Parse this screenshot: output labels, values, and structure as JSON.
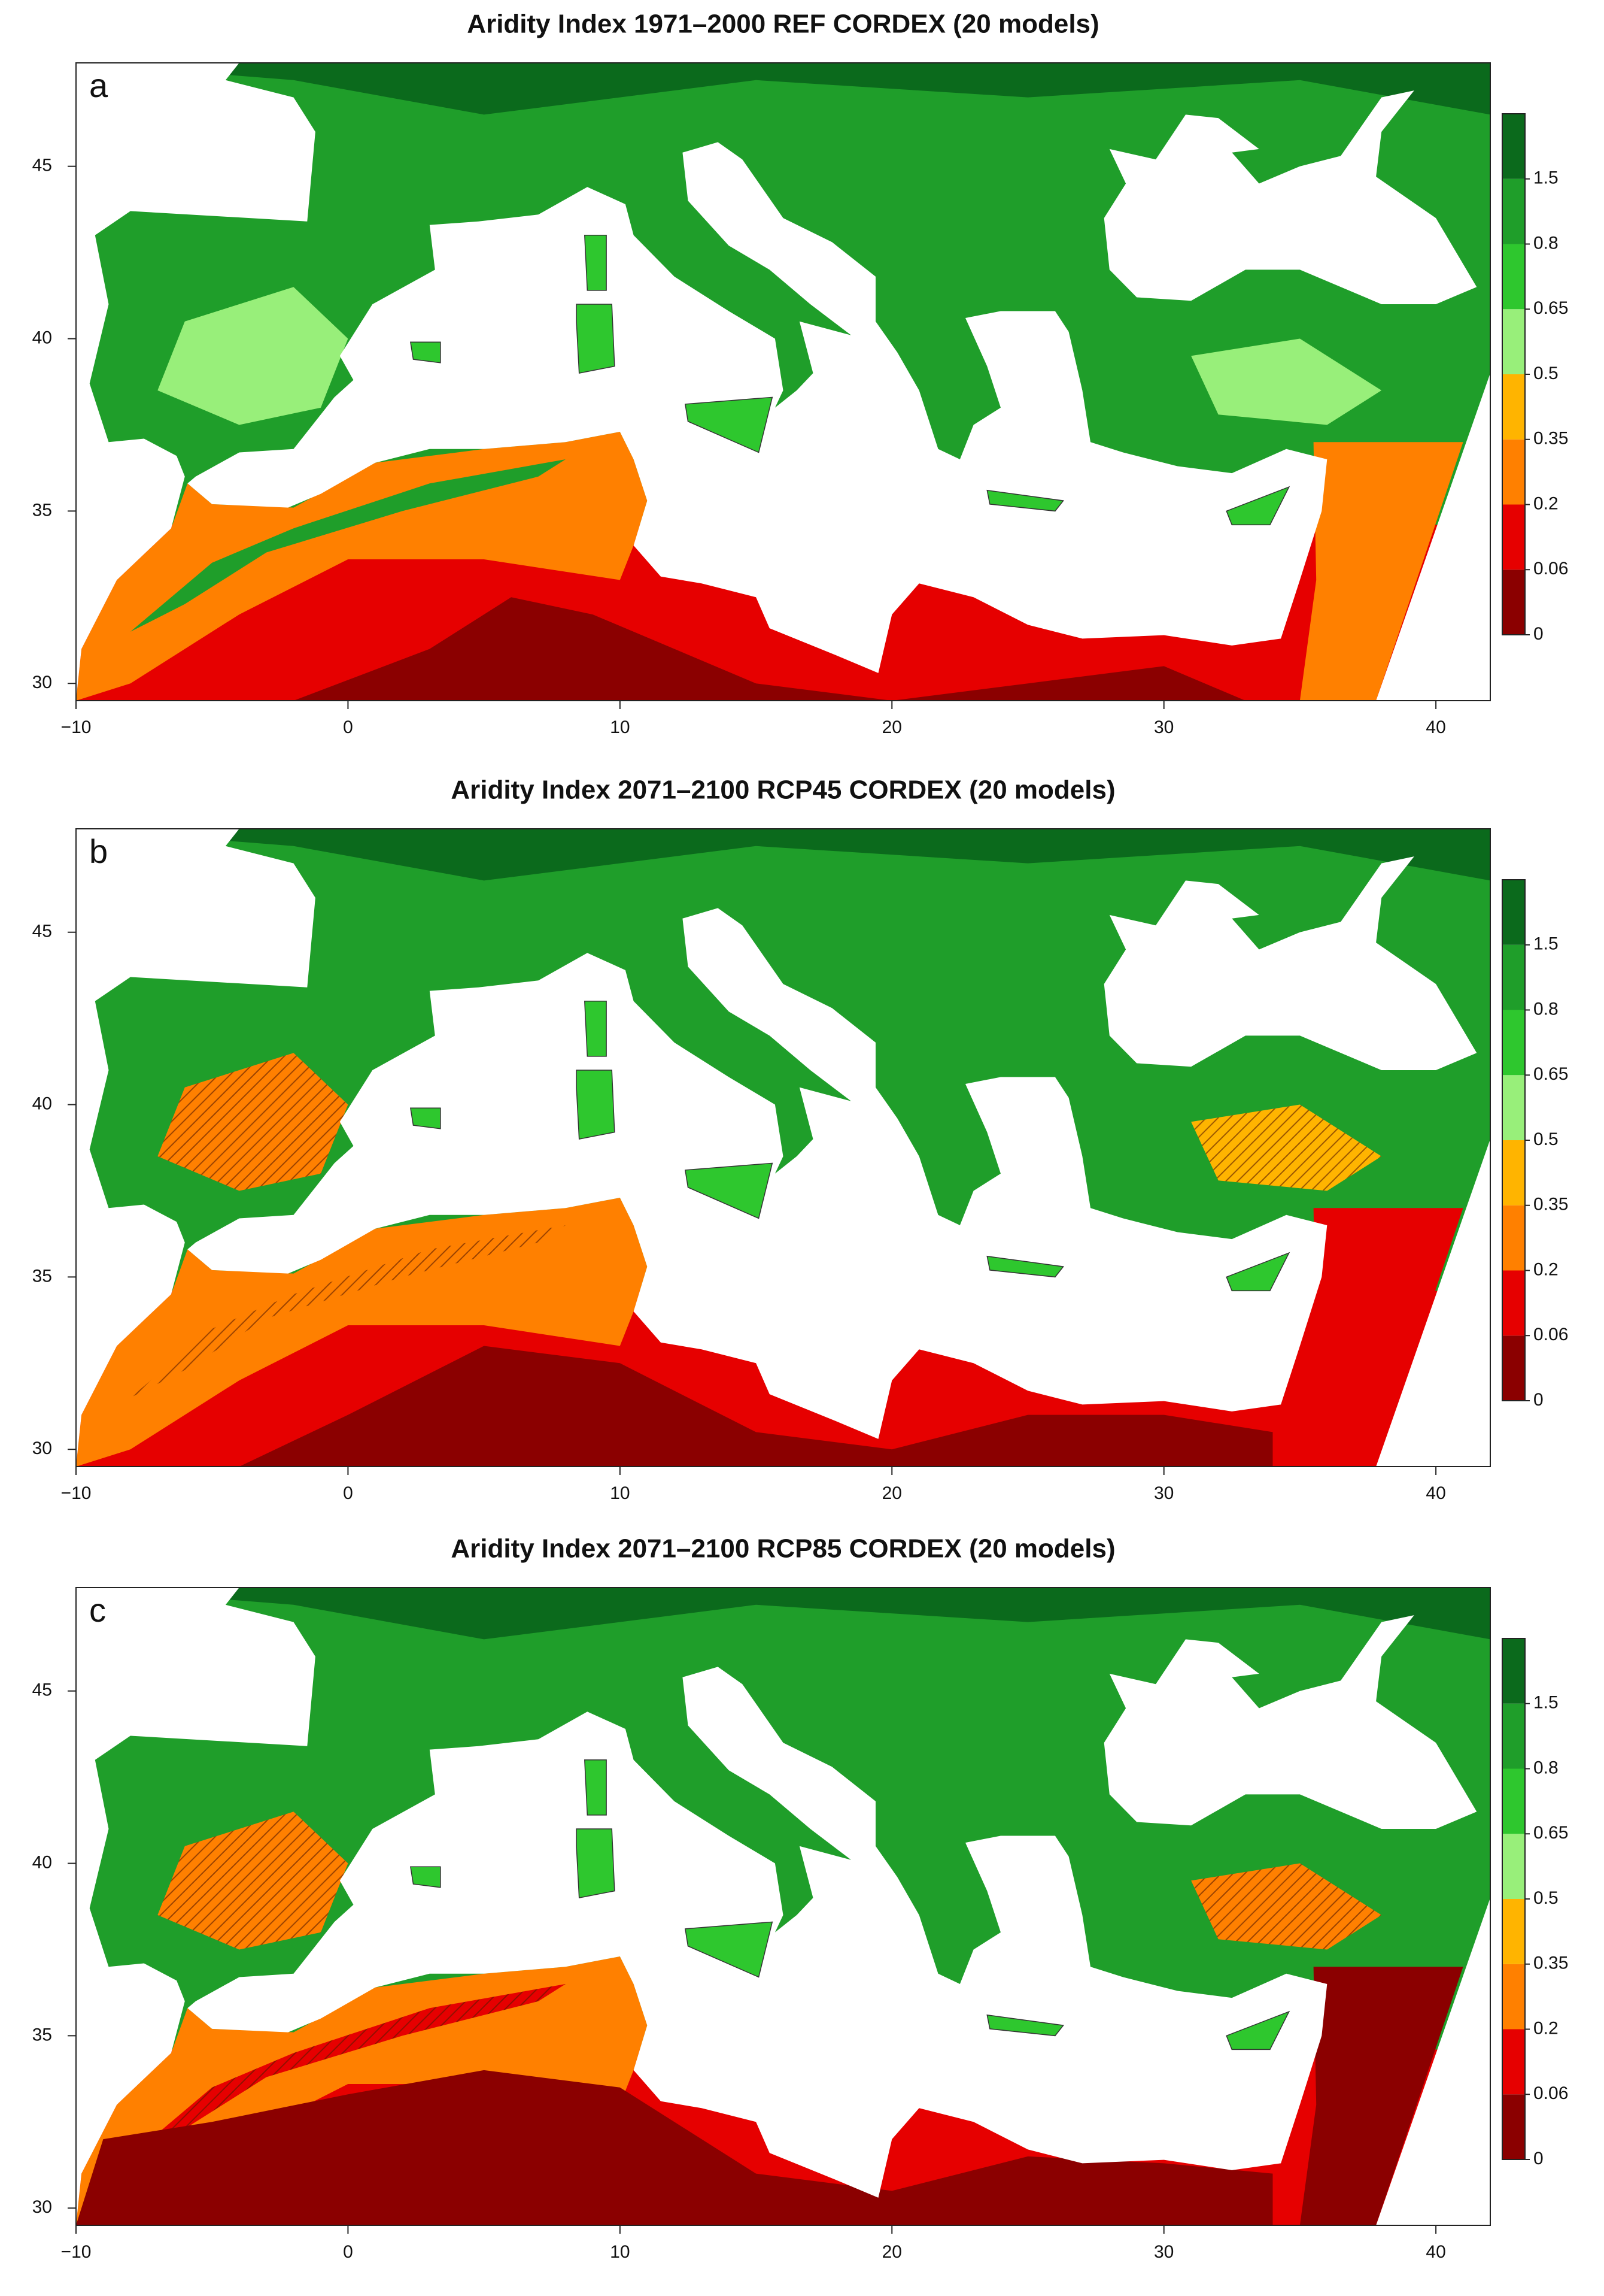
{
  "chart_data": [
    {
      "type": "map",
      "title": "Aridity Index   1971–2000   REF   CORDEX (20 models)",
      "panel_label": "a",
      "xlim": [
        -10,
        42
      ],
      "xticks": [
        {
          "value": -10,
          "label": "−10"
        },
        0,
        10,
        20,
        30,
        40
      ],
      "ylim": [
        29.5,
        48
      ],
      "yticks": [
        30,
        35,
        40,
        45
      ],
      "colorbar": {
        "levels": [
          0,
          0.06,
          0.2,
          0.35,
          0.5,
          0.65,
          0.8,
          1.5
        ],
        "colors": [
          "#8b0000",
          "#e60000",
          "#ff8000",
          "#ffb400",
          "#98ef7a",
          "#2ec72e",
          "#1f9e2a",
          "#0b6a1c"
        ]
      }
    },
    {
      "type": "map",
      "title": "Aridity Index   2071–2100   RCP45   CORDEX (20 models)",
      "panel_label": "b",
      "xlim": [
        -10,
        42
      ],
      "xticks": [
        {
          "value": -10,
          "label": "−10"
        },
        0,
        10,
        20,
        30,
        40
      ],
      "ylim": [
        29.5,
        48
      ],
      "yticks": [
        30,
        35,
        40,
        45
      ],
      "colorbar": {
        "levels": [
          0,
          0.06,
          0.2,
          0.35,
          0.5,
          0.65,
          0.8,
          1.5
        ],
        "colors": [
          "#8b0000",
          "#e60000",
          "#ff8000",
          "#ffb400",
          "#98ef7a",
          "#2ec72e",
          "#1f9e2a",
          "#0b6a1c"
        ]
      }
    },
    {
      "type": "map",
      "title": "Aridity Index   2071–2100   RCP85   CORDEX (20 models)",
      "panel_label": "c",
      "xlim": [
        -10,
        42
      ],
      "xticks": [
        {
          "value": -10,
          "label": "−10"
        },
        0,
        10,
        20,
        30,
        40
      ],
      "ylim": [
        29.5,
        48
      ],
      "yticks": [
        30,
        35,
        40,
        45
      ],
      "colorbar": {
        "levels": [
          0,
          0.06,
          0.2,
          0.35,
          0.5,
          0.65,
          0.8,
          1.5
        ],
        "colors": [
          "#8b0000",
          "#e60000",
          "#ff8000",
          "#ffb400",
          "#98ef7a",
          "#2ec72e",
          "#1f9e2a",
          "#0b6a1c"
        ]
      }
    }
  ]
}
